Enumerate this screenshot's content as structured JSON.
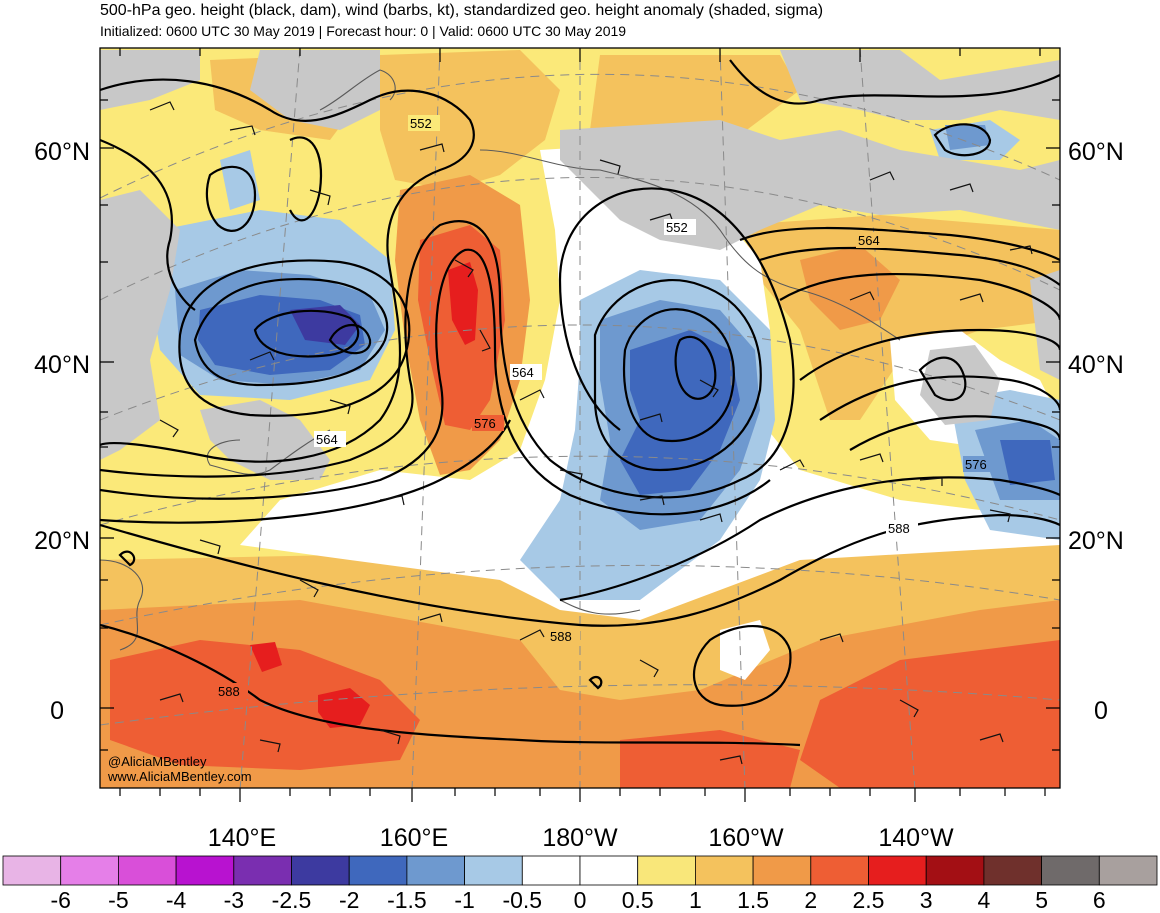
{
  "header": {
    "title": "500-hPa geo. height (black, dam), wind (barbs, kt), standardized geo. height anomaly (shaded, sigma)",
    "subtitle": "Initialized: 0600 UTC 30 May 2019 | Forecast hour: 0 | Valid: 0600 UTC 30 May 2019"
  },
  "axes": {
    "lat_labels": [
      "60°N",
      "40°N",
      "20°N",
      "0"
    ],
    "lon_labels": [
      "140°E",
      "160°E",
      "180°W",
      "160°W",
      "140°W"
    ]
  },
  "contour_labels": [
    "552",
    "552",
    "564",
    "564",
    "564",
    "576",
    "576",
    "588",
    "588",
    "588"
  ],
  "credit": {
    "handle": "@AliciaMBentley",
    "website": "www.AliciaMBentley.com"
  },
  "colorbar": {
    "ticks": [
      "-6",
      "-5",
      "-4",
      "-3",
      "-2.5",
      "-2",
      "-1.5",
      "-1",
      "-0.5",
      "0",
      "0.5",
      "1",
      "1.5",
      "2",
      "2.5",
      "3",
      "4",
      "5",
      "6"
    ],
    "colors": [
      "#e8b4e6",
      "#e57fe8",
      "#d94fd9",
      "#b812d0",
      "#7a2eb0",
      "#3d3aa0",
      "#3f68bd",
      "#6e99cf",
      "#a7c9e6",
      "#ffffff",
      "#ffffff",
      "#f9e77a",
      "#f4c25d",
      "#f09a48",
      "#ee5e34",
      "#e61e1e",
      "#a30f14",
      "#6f302c",
      "#6f6a6a",
      "#a8a09e"
    ]
  },
  "palette": {
    "land": "#c8c8c8",
    "coast": "#5a5a5a",
    "contour": "#000000",
    "grid": "#8a8a8a"
  }
}
